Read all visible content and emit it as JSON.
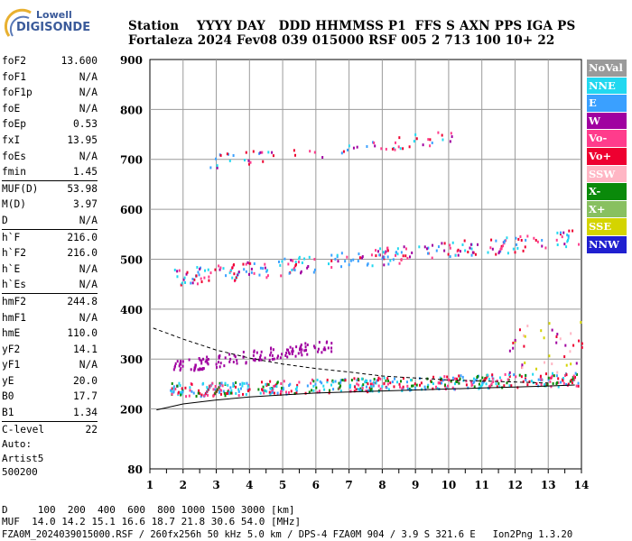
{
  "logo": {
    "line1": "Lowell",
    "line2": "DIGISONDE"
  },
  "header": {
    "line1": "Station    YYYY DAY   DDD HHMMSS P1  FFS S AXN PPS IGA PS",
    "line2": "Fortaleza 2024 Fev08 039 015000 RSF 005 2 713 100 10+ 22"
  },
  "params": [
    [
      {
        "k": "foF2",
        "v": "13.600"
      },
      {
        "k": "foF1",
        "v": "N/A"
      },
      {
        "k": "foF1p",
        "v": "N/A"
      },
      {
        "k": "foE",
        "v": "N/A"
      },
      {
        "k": "foEp",
        "v": "0.53"
      },
      {
        "k": "fxI",
        "v": "13.95"
      },
      {
        "k": "foEs",
        "v": "N/A"
      },
      {
        "k": "fmin",
        "v": "1.45"
      }
    ],
    [
      {
        "k": "MUF(D)",
        "v": "53.98"
      },
      {
        "k": "M(D)",
        "v": "3.97"
      },
      {
        "k": "D",
        "v": "N/A"
      }
    ],
    [
      {
        "k": "h`F",
        "v": "216.0"
      },
      {
        "k": "h`F2",
        "v": "216.0"
      },
      {
        "k": "h`E",
        "v": "N/A"
      },
      {
        "k": "h`Es",
        "v": "N/A"
      }
    ],
    [
      {
        "k": "hmF2",
        "v": "244.8"
      },
      {
        "k": "hmF1",
        "v": "N/A"
      },
      {
        "k": "hmE",
        "v": "110.0"
      },
      {
        "k": "yF2",
        "v": "14.1"
      },
      {
        "k": "yF1",
        "v": "N/A"
      },
      {
        "k": "yE",
        "v": "20.0"
      },
      {
        "k": "B0",
        "v": "17.7"
      },
      {
        "k": "B1",
        "v": "1.34"
      }
    ],
    [
      {
        "k": "C-level",
        "v": "22"
      }
    ]
  ],
  "auto": {
    "line1": "Auto:",
    "line2": "Artist5",
    "line3": "500200"
  },
  "footer": {
    "d_row": "D     100  200  400  600  800 1000 1500 3000 [km]",
    "muf_row": "MUF  14.0 14.2 15.1 16.6 18.7 21.8 30.6 54.0 [MHz]",
    "file_row": "FZA0M_2024039015000.RSF / 260fx256h 50 kHz 5.0 km / DPS-4 FZA0M 904 / 3.9 S 321.6 E   Ion2Png 1.3.20"
  },
  "chart_data": {
    "type": "scatter",
    "x_ticks": [
      "1",
      "2",
      "3",
      "4",
      "5",
      "6",
      "7",
      "8",
      "9",
      "10",
      "11",
      "12",
      "13",
      "14"
    ],
    "y_ticks": [
      "80",
      "200",
      "300",
      "400",
      "500",
      "600",
      "700",
      "800",
      "900"
    ],
    "xlim": [
      1,
      14
    ],
    "ylim": [
      80,
      900
    ],
    "grid": true,
    "legend": [
      {
        "name": "NoVal",
        "color": "#9a9a9a"
      },
      {
        "name": "NNE",
        "color": "#22d8f0"
      },
      {
        "name": "E",
        "color": "#3aa0ff"
      },
      {
        "name": "W",
        "color": "#a000a0"
      },
      {
        "name": "Vo-",
        "color": "#ff3c8c"
      },
      {
        "name": "Vo+",
        "color": "#ee0030"
      },
      {
        "name": "SSW",
        "color": "#ffb6c4"
      },
      {
        "name": "X-",
        "color": "#0a8a0a"
      },
      {
        "name": "X+",
        "color": "#88c060"
      },
      {
        "name": "SSE",
        "color": "#d4d400"
      },
      {
        "name": "NNW",
        "color": "#2020d0"
      }
    ],
    "traces": [
      {
        "name": "main-F-trace",
        "x0": 1.6,
        "y0": 240,
        "x1": 13.9,
        "y1": 262,
        "spread": 14,
        "colors": [
          "#ee0030",
          "#22d8f0",
          "#3aa0ff",
          "#0a8a0a",
          "#ff3c8c"
        ]
      },
      {
        "name": "W-trace",
        "x0": 1.7,
        "y0": 286,
        "x1": 6.5,
        "y1": 330,
        "spread": 12,
        "colors": [
          "#a000a0"
        ]
      },
      {
        "name": "second-hop",
        "x0": 1.7,
        "y0": 465,
        "x1": 13.9,
        "y1": 545,
        "spread": 18,
        "colors": [
          "#ee0030",
          "#22d8f0",
          "#ff3c8c",
          "#3aa0ff",
          "#a000a0"
        ]
      },
      {
        "name": "third-hop",
        "x0": 2.8,
        "y0": 698,
        "x1": 10.5,
        "y1": 748,
        "spread": 14,
        "colors": [
          "#ee0030",
          "#22d8f0",
          "#3aa0ff",
          "#a000a0",
          "#ff3c8c"
        ]
      }
    ],
    "model_curve": [
      [
        1.2,
        198
      ],
      [
        2,
        210
      ],
      [
        3,
        218
      ],
      [
        4,
        224
      ],
      [
        5,
        228
      ],
      [
        6,
        232
      ],
      [
        7,
        234
      ],
      [
        8,
        236
      ],
      [
        9,
        238
      ],
      [
        10,
        240
      ],
      [
        11,
        242
      ],
      [
        12,
        244
      ],
      [
        13,
        246
      ],
      [
        13.8,
        248
      ]
    ],
    "dashed_curve": [
      [
        1.1,
        362
      ],
      [
        2,
        340
      ],
      [
        3,
        318
      ],
      [
        4,
        302
      ],
      [
        5,
        290
      ],
      [
        6,
        281
      ],
      [
        7,
        274
      ],
      [
        8,
        266
      ],
      [
        9,
        262
      ],
      [
        10,
        258
      ],
      [
        11,
        256
      ],
      [
        12,
        254
      ],
      [
        13,
        252
      ]
    ]
  }
}
